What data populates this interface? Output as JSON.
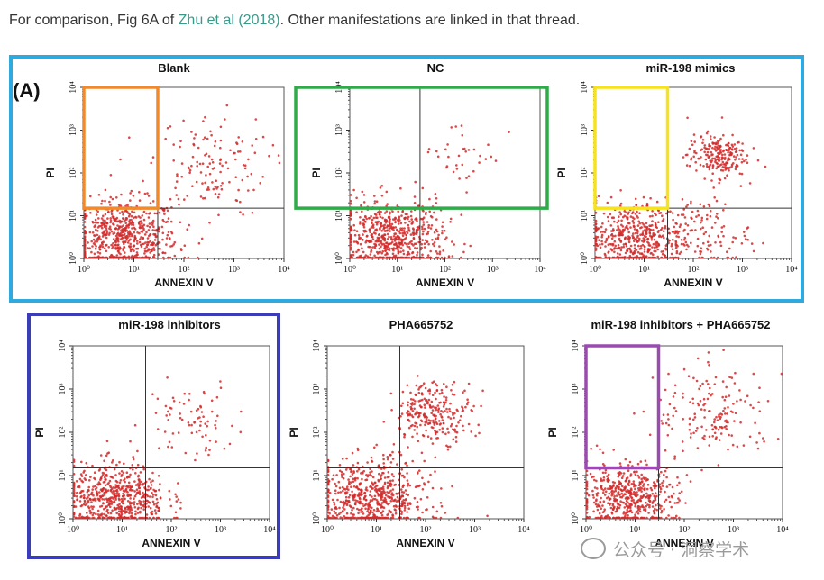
{
  "intro": {
    "before": "For comparison, Fig 6A of ",
    "link": "Zhu et al (2018)",
    "after": ". Other manifestations are linked in that thread."
  },
  "panel_label": "(A)",
  "watermark": "公众号 · 洞察学术",
  "colors": {
    "dots": "#d42a2a",
    "blue": "#2fa9de",
    "orange": "#f08a2c",
    "green": "#2fab4a",
    "yellow": "#f7e31c",
    "indigo": "#3b3cb8",
    "purple": "#9b4aaf"
  },
  "chart_data": [
    {
      "type": "scatter",
      "title": "Blank",
      "xlabel": "ANNEXIN V",
      "ylabel": "PI",
      "xscale": "log",
      "yscale": "log",
      "xlim": [
        1,
        10000
      ],
      "ylim": [
        1,
        10000
      ],
      "xticks": [
        "10⁰",
        "10¹",
        "10²",
        "10³",
        "10⁴"
      ],
      "yticks": [
        "10⁰",
        "10¹",
        "10²",
        "10³",
        "10⁴"
      ],
      "gate": {
        "x": 30,
        "y": 15
      },
      "highlight": {
        "color": "orange",
        "x": [
          1,
          30
        ],
        "y": [
          15,
          10000
        ]
      },
      "clusters": [
        {
          "label": "viable",
          "x": 6,
          "y": 3,
          "spread": [
            0.55,
            0.45
          ],
          "n": 650
        },
        {
          "label": "apoptotic",
          "x": 300,
          "y": 150,
          "spread": [
            0.6,
            0.6
          ],
          "n": 140
        }
      ]
    },
    {
      "type": "scatter",
      "title": "NC",
      "xlabel": "ANNEXIN V",
      "ylabel": "PI",
      "xscale": "log",
      "yscale": "log",
      "xlim": [
        1,
        10000
      ],
      "ylim": [
        1,
        10000
      ],
      "xticks": [
        "10⁰",
        "10¹",
        "10²",
        "10³",
        "10⁴"
      ],
      "yticks": [
        "10⁰",
        "10¹",
        "10²",
        "10³",
        "10⁴"
      ],
      "gate": {
        "x": 30,
        "y": 15
      },
      "highlight": {
        "color": "green",
        "x": [
          1,
          10000
        ],
        "y": [
          15,
          10000
        ]
      },
      "clusters": [
        {
          "label": "viable",
          "x": 8,
          "y": 3,
          "spread": [
            0.55,
            0.45
          ],
          "n": 650
        },
        {
          "label": "apoptotic",
          "x": 250,
          "y": 300,
          "spread": [
            0.45,
            0.4
          ],
          "n": 35
        }
      ]
    },
    {
      "type": "scatter",
      "title": "miR-198 mimics",
      "xlabel": "ANNEXIN V",
      "ylabel": "PI",
      "xscale": "log",
      "yscale": "log",
      "xlim": [
        1,
        10000
      ],
      "ylim": [
        1,
        10000
      ],
      "xticks": [
        "10⁰",
        "10¹",
        "10²",
        "10³",
        "10⁴"
      ],
      "yticks": [
        "10⁰",
        "10¹",
        "10²",
        "10³",
        "10⁴"
      ],
      "gate": {
        "x": 30,
        "y": 15
      },
      "highlight": {
        "color": "yellow",
        "x": [
          1,
          30
        ],
        "y": [
          15,
          10000
        ]
      },
      "clusters": [
        {
          "label": "viable",
          "x": 6,
          "y": 3,
          "spread": [
            0.5,
            0.45
          ],
          "n": 500
        },
        {
          "label": "early",
          "x": 150,
          "y": 4,
          "spread": [
            0.5,
            0.4
          ],
          "n": 120
        },
        {
          "label": "apoptotic",
          "x": 300,
          "y": 250,
          "spread": [
            0.3,
            0.25
          ],
          "n": 220
        }
      ]
    },
    {
      "type": "scatter",
      "title": "miR-198 inhibitors",
      "xlabel": "ANNEXIN V",
      "ylabel": "PI",
      "xscale": "log",
      "yscale": "log",
      "xlim": [
        1,
        10000
      ],
      "ylim": [
        1,
        10000
      ],
      "xticks": [
        "10⁰",
        "10¹",
        "10²",
        "10³",
        "10⁴"
      ],
      "yticks": [
        "10⁰",
        "10¹",
        "10²",
        "10³",
        "10⁴"
      ],
      "gate": {
        "x": 30,
        "y": 15
      },
      "highlight": {
        "color": "indigo",
        "frame": true
      },
      "clusters": [
        {
          "label": "viable",
          "x": 8,
          "y": 3,
          "spread": [
            0.5,
            0.4
          ],
          "n": 600
        },
        {
          "label": "apoptotic",
          "x": 250,
          "y": 200,
          "spread": [
            0.45,
            0.45
          ],
          "n": 80
        }
      ]
    },
    {
      "type": "scatter",
      "title": "PHA665752",
      "xlabel": "ANNEXIN V",
      "ylabel": "PI",
      "xscale": "log",
      "yscale": "log",
      "xlim": [
        1,
        10000
      ],
      "ylim": [
        1,
        10000
      ],
      "xticks": [
        "10⁰",
        "10¹",
        "10²",
        "10³",
        "10⁴"
      ],
      "yticks": [
        "10⁰",
        "10¹",
        "10²",
        "10³",
        "10⁴"
      ],
      "gate": {
        "x": 30,
        "y": 15
      },
      "highlight": null,
      "clusters": [
        {
          "label": "viable",
          "x": 8,
          "y": 3,
          "spread": [
            0.55,
            0.45
          ],
          "n": 620
        },
        {
          "label": "apoptotic",
          "x": 150,
          "y": 300,
          "spread": [
            0.4,
            0.35
          ],
          "n": 260
        }
      ]
    },
    {
      "type": "scatter",
      "title": "miR-198 inhibitors + PHA665752",
      "xlabel": "ANNEXIN V",
      "ylabel": "PI",
      "xscale": "log",
      "yscale": "log",
      "xlim": [
        1,
        10000
      ],
      "ylim": [
        1,
        10000
      ],
      "xticks": [
        "10⁰",
        "10¹",
        "10²",
        "10³",
        "10⁴"
      ],
      "yticks": [
        "10⁰",
        "10¹",
        "10²",
        "10³",
        "10⁴"
      ],
      "gate": {
        "x": 30,
        "y": 15
      },
      "highlight": {
        "color": "purple",
        "x": [
          1,
          30
        ],
        "y": [
          15,
          10000
        ]
      },
      "clusters": [
        {
          "label": "viable",
          "x": 7,
          "y": 3,
          "spread": [
            0.5,
            0.4
          ],
          "n": 550
        },
        {
          "label": "apoptotic",
          "x": 400,
          "y": 250,
          "spread": [
            0.6,
            0.55
          ],
          "n": 170
        }
      ]
    }
  ]
}
